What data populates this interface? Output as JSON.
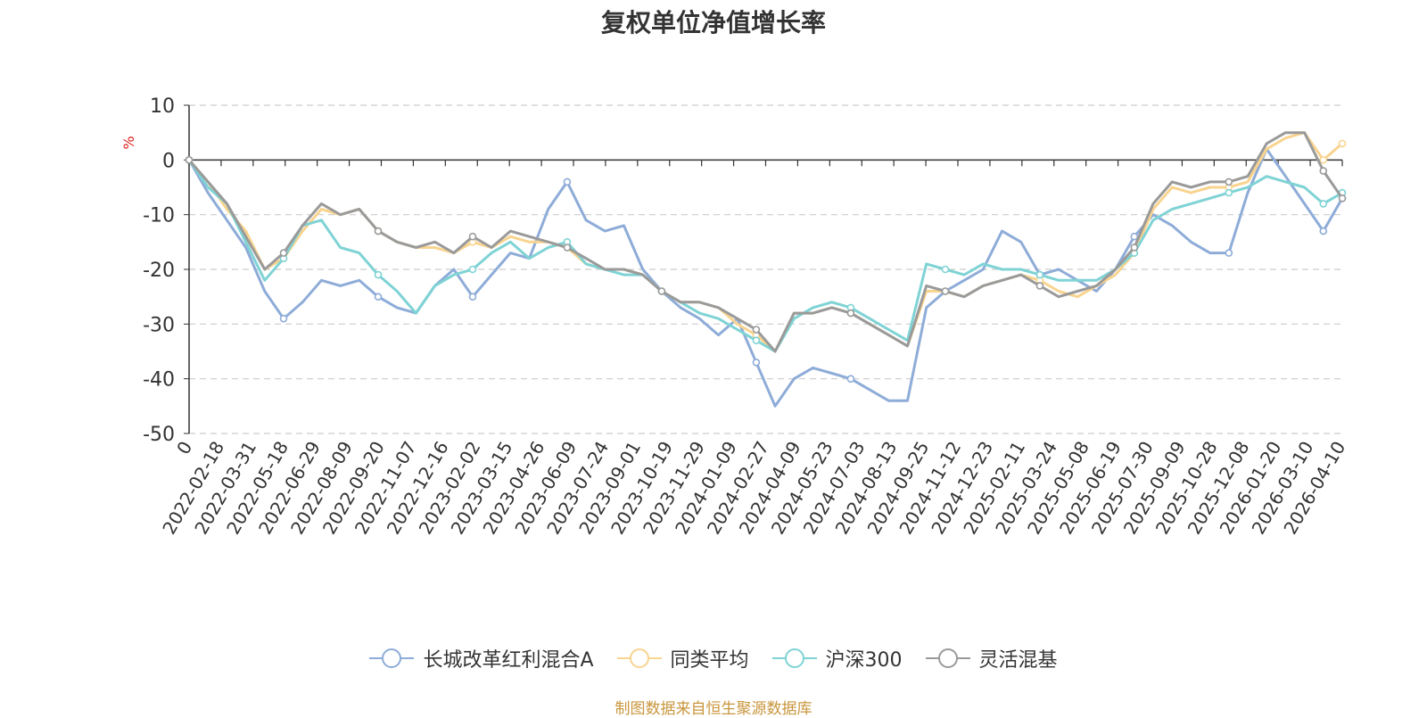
{
  "chart_data": {
    "type": "line",
    "title": "复权单位净值增长率",
    "ylabel": "%",
    "ylim": [
      -50,
      10
    ],
    "yticks": [
      "10",
      "0",
      "-10",
      "-20",
      "-30",
      "-40",
      "-50"
    ],
    "x_tick_labels": [
      "0",
      "2022-02-18",
      "2022-03-31",
      "2022-05-18",
      "2022-06-29",
      "2022-08-09",
      "2022-09-20",
      "2022-11-07",
      "2022-12-16",
      "2023-02-02",
      "2023-03-15",
      "2023-04-26",
      "2023-06-09",
      "2023-07-24",
      "2023-09-01",
      "2023-10-19",
      "2023-11-29",
      "2024-01-09",
      "2024-02-27",
      "2024-04-09",
      "2024-05-23",
      "2024-07-03",
      "2024-08-13",
      "2024-09-25",
      "2024-11-12",
      "2024-12-23",
      "2025-02-11",
      "2025-03-24",
      "2025-05-08",
      "2025-06-19",
      "2025-07-30",
      "2025-09-09",
      "2025-10-28",
      "2025-12-08",
      "2026-01-20",
      "2026-03-10",
      "2026-04-10"
    ],
    "grid": true,
    "legend_position": "bottom",
    "series": [
      {
        "name": "长城改革红利混合A",
        "color": "#8eacd8",
        "values": [
          0,
          -6,
          -11,
          -16,
          -24,
          -29,
          -26,
          -22,
          -23,
          -22,
          -25,
          -27,
          -28,
          -23,
          -20,
          -25,
          -21,
          -17,
          -18,
          -9,
          -4,
          -11,
          -13,
          -12,
          -20,
          -24,
          -27,
          -29,
          -32,
          -29,
          -37,
          -45,
          -40,
          -38,
          -39,
          -40,
          -42,
          -44,
          -44,
          -27,
          -24,
          -22,
          -20,
          -13,
          -15,
          -21,
          -20,
          -22,
          -24,
          -20,
          -14,
          -10,
          -12,
          -15,
          -17,
          -17,
          -6,
          2,
          -3,
          -8,
          -13,
          -7
        ]
      },
      {
        "name": "同类平均",
        "color": "#f9d48f",
        "values": [
          0,
          -4,
          -9,
          -13,
          -20,
          -18,
          -13,
          -9,
          -10,
          -9,
          -13,
          -15,
          -16,
          -16,
          -17,
          -15,
          -16,
          -14,
          -15,
          -15,
          -16,
          -19,
          -20,
          -20,
          -21,
          -24,
          -26,
          -26,
          -27,
          -30,
          -32,
          -35,
          -28,
          -28,
          -27,
          -28,
          -30,
          -32,
          -34,
          -24,
          -24,
          -25,
          -23,
          -22,
          -21,
          -22,
          -24,
          -25,
          -23,
          -21,
          -17,
          -9,
          -5,
          -6,
          -5,
          -5,
          -4,
          2,
          4,
          5,
          0,
          3
        ]
      },
      {
        "name": "沪深300",
        "color": "#7fd3d5",
        "values": [
          0,
          -5,
          -8,
          -15,
          -22,
          -18,
          -12,
          -11,
          -16,
          -17,
          -21,
          -24,
          -28,
          -23,
          -21,
          -20,
          -17,
          -15,
          -18,
          -16,
          -15,
          -19,
          -20,
          -21,
          -21,
          -24,
          -26,
          -28,
          -29,
          -31,
          -33,
          -35,
          -29,
          -27,
          -26,
          -27,
          -29,
          -31,
          -33,
          -19,
          -20,
          -21,
          -19,
          -20,
          -20,
          -21,
          -22,
          -22,
          -22,
          -20,
          -17,
          -11,
          -9,
          -8,
          -7,
          -6,
          -5,
          -3,
          -4,
          -5,
          -8,
          -6
        ]
      },
      {
        "name": "灵活混基",
        "color": "#9a9a9a",
        "values": [
          0,
          -4,
          -8,
          -14,
          -20,
          -17,
          -12,
          -8,
          -10,
          -9,
          -13,
          -15,
          -16,
          -15,
          -17,
          -14,
          -16,
          -13,
          -14,
          -15,
          -16,
          -18,
          -20,
          -20,
          -21,
          -24,
          -26,
          -26,
          -27,
          -29,
          -31,
          -35,
          -28,
          -28,
          -27,
          -28,
          -30,
          -32,
          -34,
          -23,
          -24,
          -25,
          -23,
          -22,
          -21,
          -23,
          -25,
          -24,
          -23,
          -20,
          -16,
          -8,
          -4,
          -5,
          -4,
          -4,
          -3,
          3,
          5,
          5,
          -2,
          -7
        ]
      }
    ]
  },
  "footer": {
    "source": "制图数据来自恒生聚源数据库"
  }
}
